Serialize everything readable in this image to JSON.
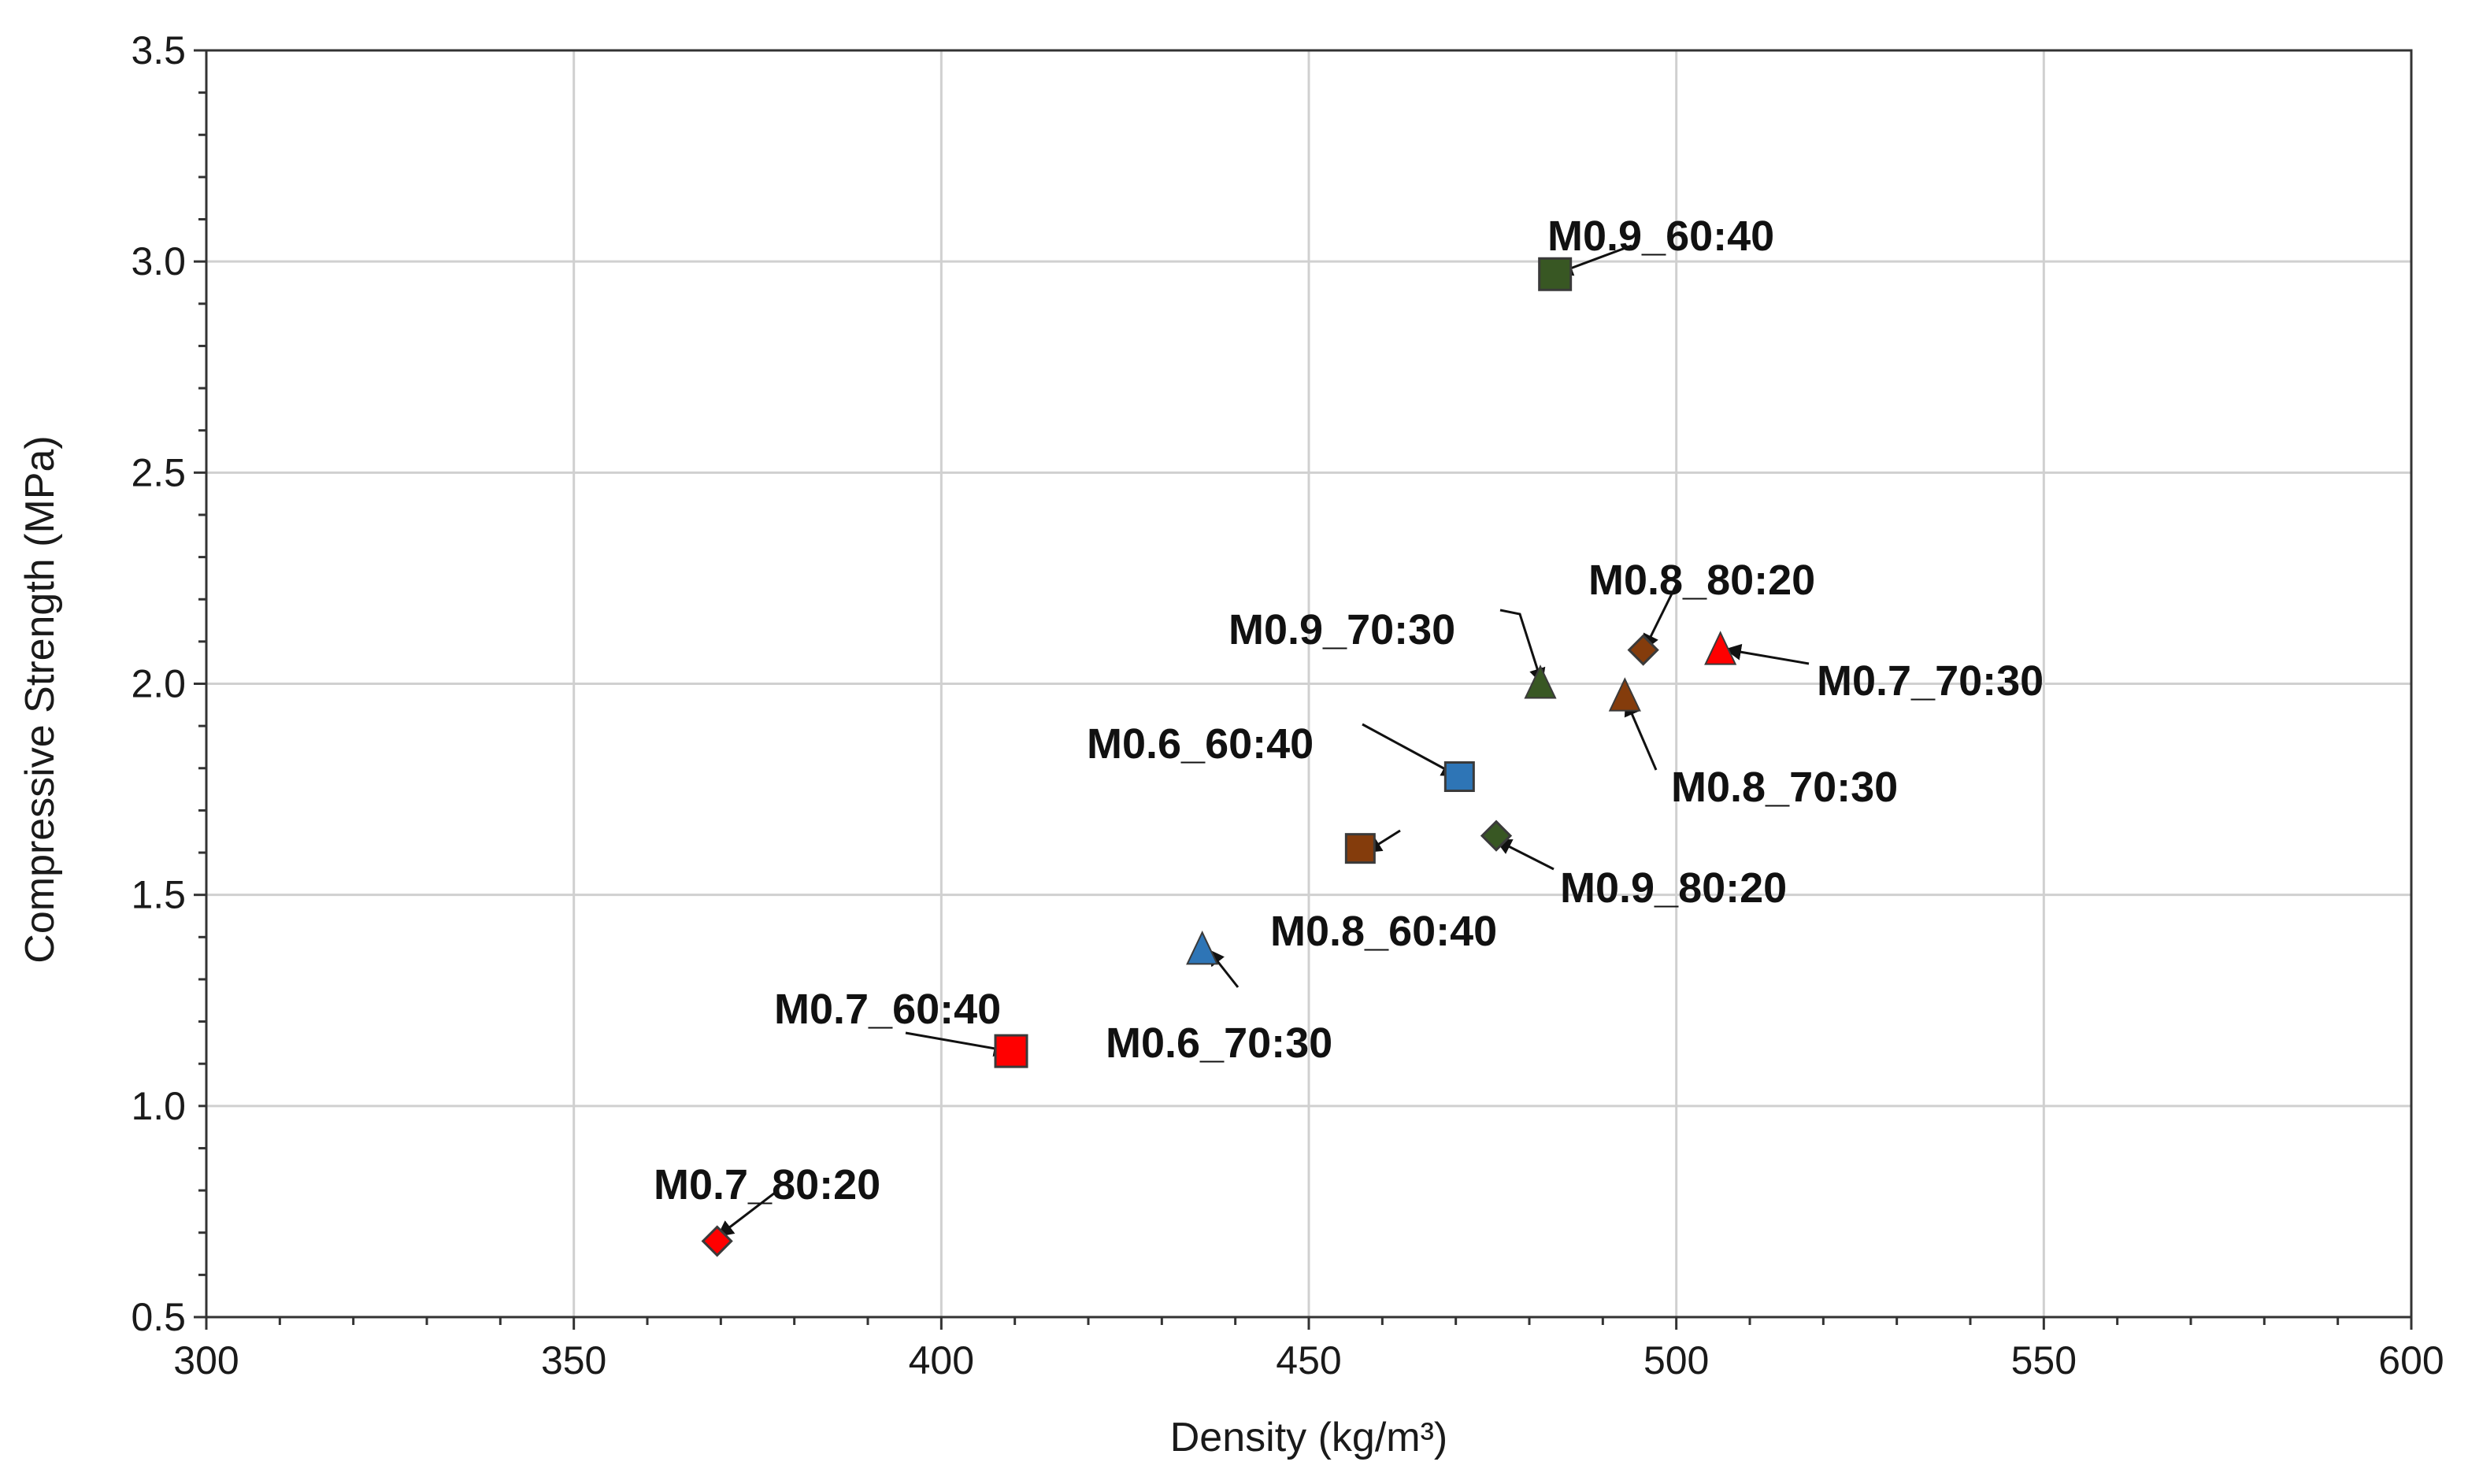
{
  "chart_data": {
    "type": "scatter",
    "title": "",
    "xlabel": "Density (kg/m³)",
    "ylabel": "Compressive Strength (MPa)",
    "xlim": [
      300,
      600
    ],
    "ylim": [
      0.5,
      3.5
    ],
    "xticks": [
      300,
      350,
      400,
      450,
      500,
      550,
      600
    ],
    "yticks": [
      0.5,
      1.0,
      1.5,
      2.0,
      2.5,
      3.0,
      3.5
    ],
    "xtick_labels": [
      "300",
      "350",
      "400",
      "450",
      "500",
      "550",
      "600"
    ],
    "ytick_labels": [
      "0.5",
      "1.0",
      "1.5",
      "2.0",
      "2.5",
      "3.0",
      "3.5"
    ],
    "grid": true,
    "colors": {
      "M0.6": "#2e75b6",
      "M0.7": "#ff0000",
      "M0.8": "#843c0c",
      "M0.9": "#385723"
    },
    "series": [
      {
        "name": "M0.9_60:40",
        "group": "M0.9",
        "marker": "square",
        "x": 483.5,
        "y": 2.97
      },
      {
        "name": "M0.8_80:20",
        "group": "M0.8",
        "marker": "diamond",
        "x": 495.5,
        "y": 2.08
      },
      {
        "name": "M0.9_70:30",
        "group": "M0.9",
        "marker": "triangle",
        "x": 481.5,
        "y": 2.0
      },
      {
        "name": "M0.7_70:30",
        "group": "M0.7",
        "marker": "triangle",
        "x": 506.0,
        "y": 2.08
      },
      {
        "name": "M0.8_70:30",
        "group": "M0.8",
        "marker": "triangle",
        "x": 493.0,
        "y": 1.97
      },
      {
        "name": "M0.6_60:40",
        "group": "M0.6",
        "marker": "square",
        "x": 470.5,
        "y": 1.78
      },
      {
        "name": "M0.9_80:20",
        "group": "M0.9",
        "marker": "diamond",
        "x": 475.5,
        "y": 1.64
      },
      {
        "name": "M0.8_60:40",
        "group": "M0.8",
        "marker": "square",
        "x": 457.0,
        "y": 1.61
      },
      {
        "name": "M0.6_70:30",
        "group": "M0.6",
        "marker": "triangle",
        "x": 435.5,
        "y": 1.37
      },
      {
        "name": "M0.7_60:40",
        "group": "M0.7",
        "marker": "square",
        "x": 409.5,
        "y": 1.13
      },
      {
        "name": "M0.7_80:20",
        "group": "M0.7",
        "marker": "diamond",
        "x": 369.5,
        "y": 0.68
      }
    ]
  }
}
